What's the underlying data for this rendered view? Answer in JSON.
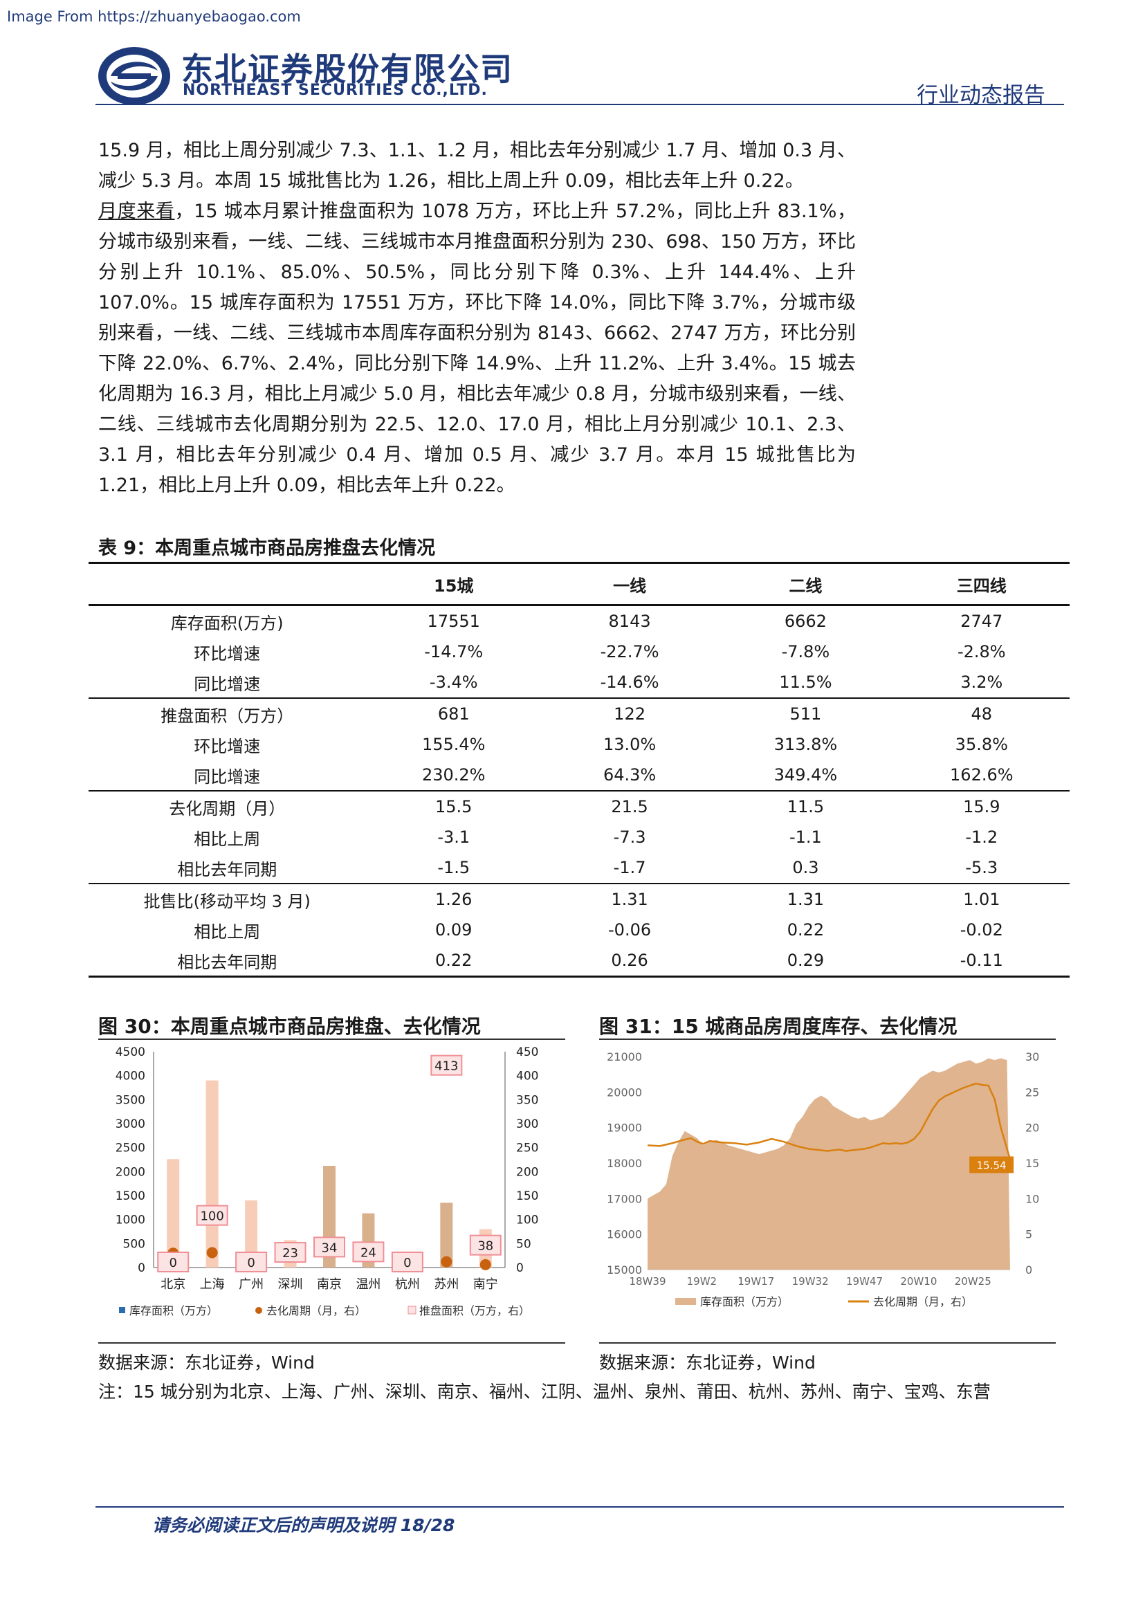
{
  "watermark": "Image From https://zhuanyebaogao.com",
  "header": {
    "company_cn": "东北证券股份有限公司",
    "company_en": "NORTHEAST SECURITIES CO.,LTD.",
    "report_type": "行业动态报告",
    "brand_color": "#1f3a7a"
  },
  "body": {
    "p1": "15.9 月，相比上周分别减少 7.3、1.1、1.2 月，相比去年分别减少 1.7 月、增加 0.3 月、减少 5.3 月。本周 15 城批售比为 1.26，相比上周上升 0.09，相比去年上升 0.22。",
    "p2_lead": "月度来看",
    "p2": "，15 城本月累计推盘面积为 1078 万方，环比上升 57.2%，同比上升 83.1%，分城市级别来看，一线、二线、三线城市本月推盘面积分别为 230、698、150 万方，环比分别上升 10.1%、85.0%、50.5%，同比分别下降 0.3%、上升 144.4%、上升 107.0%。15 城库存面积为 17551 万方，环比下降 14.0%，同比下降 3.7%，分城市级别来看，一线、二线、三线城市本周库存面积分别为 8143、6662、2747 万方，环比分别下降 22.0%、6.7%、2.4%，同比分别下降 14.9%、上升 11.2%、上升 3.4%。15 城去化周期为 16.3 月，相比上月减少 5.0 月，相比去年减少 0.8 月，分城市级别来看，一线、二线、三线城市去化周期分别为 22.5、12.0、17.0 月，相比上月分别减少 10.1、2.3、3.1 月，相比去年分别减少 0.4 月、增加 0.5 月、减少 3.7 月。本月 15 城批售比为 1.21，相比上月上升 0.09，相比去年上升 0.22。"
  },
  "table": {
    "title": "表 9：本周重点城市商品房推盘去化情况",
    "headers": [
      "",
      "15城",
      "一线",
      "二线",
      "三四线"
    ],
    "rows": [
      {
        "label": "库存面积(万方)",
        "values": [
          "17551",
          "8143",
          "6662",
          "2747"
        ]
      },
      {
        "label": "环比增速",
        "values": [
          "-14.7%",
          "-22.7%",
          "-7.8%",
          "-2.8%"
        ]
      },
      {
        "label": "同比增速",
        "values": [
          "-3.4%",
          "-14.6%",
          "11.5%",
          "3.2%"
        ]
      },
      {
        "label": "推盘面积（万方）",
        "values": [
          "681",
          "122",
          "511",
          "48"
        ]
      },
      {
        "label": "环比增速",
        "values": [
          "155.4%",
          "13.0%",
          "313.8%",
          "35.8%"
        ]
      },
      {
        "label": "同比增速",
        "values": [
          "230.2%",
          "64.3%",
          "349.4%",
          "162.6%"
        ]
      },
      {
        "label": "去化周期（月）",
        "values": [
          "15.5",
          "21.5",
          "11.5",
          "15.9"
        ]
      },
      {
        "label": "相比上周",
        "values": [
          "-3.1",
          "-7.3",
          "-1.1",
          "-1.2"
        ]
      },
      {
        "label": "相比去年同期",
        "values": [
          "-1.5",
          "-1.7",
          "0.3",
          "-5.3"
        ]
      },
      {
        "label": "批售比(移动平均 3 月)",
        "values": [
          "1.26",
          "1.31",
          "1.31",
          "1.01"
        ]
      },
      {
        "label": "相比上周",
        "values": [
          "0.09",
          "-0.06",
          "0.22",
          "-0.02"
        ]
      },
      {
        "label": "相比去年同期",
        "values": [
          "0.22",
          "0.26",
          "0.29",
          "-0.11"
        ]
      }
    ]
  },
  "fig30": {
    "title": "图 30：本周重点城市商品房推盘、去化情况",
    "source": "数据来源：东北证券，Wind"
  },
  "fig31": {
    "title": "图 31：15 城商品房周度库存、去化情况",
    "source": "数据来源：东北证券，Wind"
  },
  "note": "注：15 城分别为北京、上海、广州、深圳、南京、福州、江阴、温州、泉州、莆田、杭州、苏州、南宁、宝鸡、东营",
  "footer": "请务必阅读正文后的声明及说明  18/28",
  "chart_data": [
    {
      "type": "bar",
      "categories": [
        "北京",
        "上海",
        "广州",
        "深圳",
        "南京",
        "温州",
        "杭州",
        "苏州",
        "南宁"
      ],
      "series": [
        {
          "name": "库存面积（万方）",
          "values": [
            2260,
            3900,
            1400,
            570,
            2120,
            1130,
            0,
            1350,
            800
          ],
          "color": "#f7cdb8"
        },
        {
          "name": "去化周期（月，右）",
          "values": [
            30,
            31,
            0,
            0,
            0,
            0,
            0,
            12,
            6
          ],
          "color": "#c8620e"
        },
        {
          "name": "推盘面积（万方，右）",
          "values": [
            0,
            100,
            0,
            23,
            34,
            24,
            0,
            413,
            38
          ],
          "color": "#f08f95"
        }
      ],
      "ylim_left": [
        0,
        4500
      ],
      "yticks_left": [
        0,
        500,
        1000,
        1500,
        2000,
        2500,
        3000,
        3500,
        4000,
        4500
      ],
      "ylim_right": [
        0,
        450
      ],
      "yticks_right": [
        0,
        50,
        100,
        150,
        200,
        250,
        300,
        350,
        400,
        450
      ],
      "legend": [
        "库存面积（万方）",
        "去化周期（月，右）",
        "推盘面积（万方，右）"
      ],
      "legend_position": "bottom"
    },
    {
      "type": "area",
      "x_ticks": [
        "18W39",
        "19W2",
        "19W17",
        "19W32",
        "19W47",
        "20W10",
        "20W25"
      ],
      "ylim_left": [
        15000,
        21000
      ],
      "yticks_left": [
        15000,
        16000,
        17000,
        18000,
        19000,
        20000,
        21000
      ],
      "ylim_right": [
        0,
        30
      ],
      "yticks_right": [
        0,
        5,
        10,
        15,
        20,
        25,
        30
      ],
      "series": [
        {
          "name": "库存面积（万方）",
          "kind": "area",
          "color": "#dfb48f",
          "x": [
            0,
            2,
            4,
            6,
            8,
            10,
            12,
            14,
            16,
            18,
            20,
            22,
            24,
            26,
            28,
            30,
            32,
            34,
            36,
            38,
            40,
            42,
            44,
            46,
            48,
            50,
            52,
            54,
            56,
            58,
            60,
            62,
            64,
            66,
            68,
            70,
            72,
            74,
            76,
            78,
            80,
            82,
            84,
            86,
            88,
            90,
            92,
            94,
            96,
            98,
            100,
            102,
            104,
            106,
            108,
            110,
            112,
            114,
            116,
            117
          ],
          "values": [
            17000,
            17100,
            17200,
            17400,
            18200,
            18600,
            18900,
            18800,
            18700,
            18500,
            18600,
            18650,
            18600,
            18500,
            18450,
            18400,
            18350,
            18300,
            18250,
            18300,
            18350,
            18400,
            18500,
            18700,
            19100,
            19300,
            19600,
            19800,
            19900,
            19800,
            19600,
            19500,
            19400,
            19300,
            19250,
            19300,
            19200,
            19250,
            19300,
            19450,
            19600,
            19800,
            20000,
            20200,
            20400,
            20500,
            20600,
            20550,
            20600,
            20700,
            20800,
            20850,
            20900,
            20800,
            20850,
            20950,
            20900,
            20950,
            20900,
            15000
          ]
        },
        {
          "name": "去化周期（月，右）",
          "kind": "line",
          "color": "#d9800f",
          "x": [
            0,
            4,
            8,
            12,
            14,
            16,
            18,
            20,
            24,
            28,
            32,
            36,
            40,
            44,
            48,
            52,
            56,
            58,
            60,
            62,
            64,
            66,
            68,
            70,
            72,
            74,
            76,
            78,
            80,
            82,
            84,
            86,
            88,
            90,
            92,
            94,
            96,
            98,
            100,
            102,
            104,
            106,
            108,
            110,
            112,
            114,
            116,
            117
          ],
          "values": [
            17.5,
            17.4,
            17.8,
            18.3,
            18.5,
            18.0,
            17.7,
            18.1,
            17.9,
            17.8,
            17.6,
            17.9,
            18.4,
            18.0,
            17.4,
            17.0,
            16.8,
            16.7,
            16.8,
            16.9,
            16.7,
            16.8,
            16.9,
            17.0,
            17.2,
            17.5,
            17.8,
            17.7,
            17.8,
            17.7,
            17.9,
            18.4,
            19.4,
            21.0,
            22.6,
            23.8,
            24.4,
            24.8,
            25.2,
            25.6,
            25.9,
            26.2,
            26.0,
            25.9,
            24.0,
            20.0,
            17.0,
            15.54
          ]
        }
      ],
      "annotation": "15.54",
      "legend": [
        "库存面积（万方）",
        "去化周期（月，右）"
      ],
      "legend_position": "bottom"
    }
  ]
}
